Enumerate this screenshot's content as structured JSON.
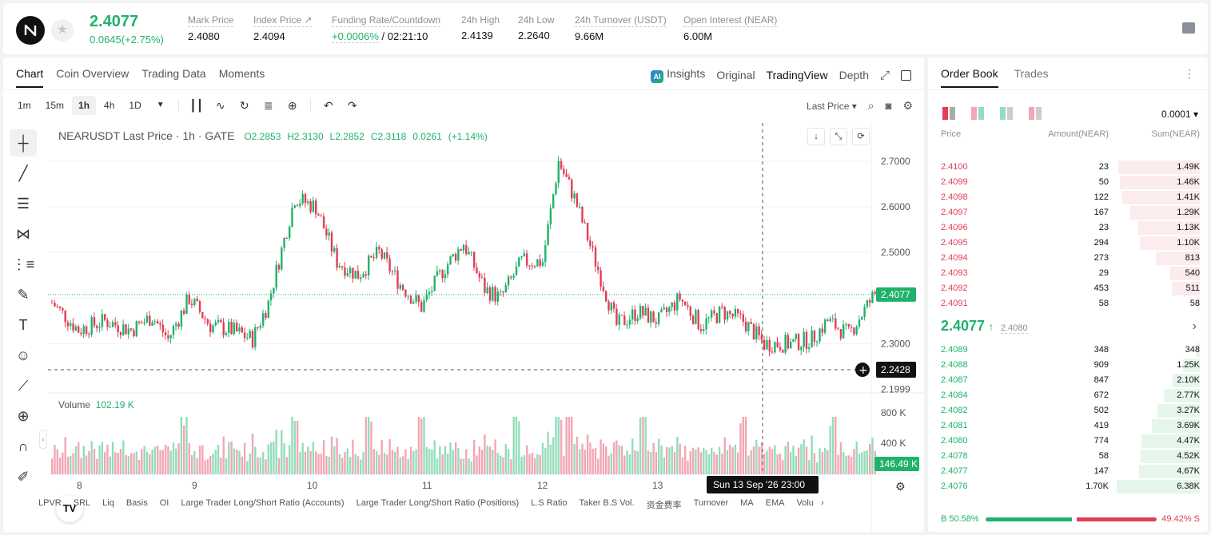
{
  "header": {
    "last_price": "2.4077",
    "change": "0.0645(+2.75%)",
    "stats": [
      {
        "label": "Mark Price",
        "value": "2.4080"
      },
      {
        "label": "Index Price ↗",
        "value": "2.4094"
      },
      {
        "label": "Funding Rate/Countdown",
        "value_green": "+0.0006%",
        "value": "/ 02:21:10"
      },
      {
        "label": "24h High",
        "value": "2.4139"
      },
      {
        "label": "24h Low",
        "value": "2.2640"
      },
      {
        "label": "24h Turnover (USDT)",
        "value": "9.66M"
      },
      {
        "label": "Open Interest (NEAR)",
        "value": "6.00M"
      }
    ]
  },
  "chart_tabs": [
    "Chart",
    "Coin Overview",
    "Trading Data",
    "Moments"
  ],
  "chart_views": {
    "insights": "Insights",
    "original": "Original",
    "tradingview": "TradingView",
    "depth": "Depth",
    "ai": "AI"
  },
  "timeframes": [
    "1m",
    "15m",
    "1h",
    "4h",
    "1D"
  ],
  "active_timeframe": "1h",
  "price_type": "Last Price",
  "legend": {
    "symbol": "NEARUSDT Last Price · 1h · GATE",
    "o": "O2.2853",
    "h": "H2.3130",
    "l": "L2.2852",
    "c": "C2.3118",
    "chg": "0.0261",
    "chg_pct": "(+1.14%)"
  },
  "volume_legend": {
    "label": "Volume",
    "value": "102.19 K"
  },
  "price_axis": [
    "2.7000",
    "2.6000",
    "2.5000",
    "2.3000",
    "2.1999"
  ],
  "volume_axis": [
    "800 K",
    "400 K"
  ],
  "time_axis": [
    "8",
    "9",
    "10",
    "11",
    "12",
    "13"
  ],
  "last_price_tag": "2.4077",
  "crosshair_price_tag": "2.2428",
  "volume_tag": "146.49 K",
  "crosshair_time": "Sun 13 Sep '26   23:00",
  "bottom_indicators": [
    "LPVR",
    "SRL",
    "Liq",
    "Basis",
    "OI",
    "Large Trader Long/Short Ratio (Accounts)",
    "Large Trader Long/Short Ratio (Positions)",
    "L.S Ratio",
    "Taker B.S Vol.",
    "资金费率",
    "Turnover",
    "MA",
    "EMA",
    "Volu"
  ],
  "orderbook": {
    "tabs": [
      "Order Book",
      "Trades"
    ],
    "precision": "0.0001",
    "headers": {
      "price": "Price",
      "amount": "Amount(NEAR)",
      "sum": "Sum(NEAR)"
    },
    "asks": [
      {
        "price": "2.4100",
        "amount": "23",
        "sum": "1.49K",
        "depth": 0.98
      },
      {
        "price": "2.4099",
        "amount": "50",
        "sum": "1.46K",
        "depth": 0.96
      },
      {
        "price": "2.4098",
        "amount": "122",
        "sum": "1.41K",
        "depth": 0.93
      },
      {
        "price": "2.4097",
        "amount": "167",
        "sum": "1.29K",
        "depth": 0.85
      },
      {
        "price": "2.4096",
        "amount": "23",
        "sum": "1.13K",
        "depth": 0.74
      },
      {
        "price": "2.4095",
        "amount": "294",
        "sum": "1.10K",
        "depth": 0.72
      },
      {
        "price": "2.4094",
        "amount": "273",
        "sum": "813",
        "depth": 0.53
      },
      {
        "price": "2.4093",
        "amount": "29",
        "sum": "540",
        "depth": 0.36
      },
      {
        "price": "2.4092",
        "amount": "453",
        "sum": "511",
        "depth": 0.34
      },
      {
        "price": "2.4091",
        "amount": "58",
        "sum": "58",
        "depth": 0.04
      }
    ],
    "mid_price": "2.4077",
    "mid_ref": "2.4080",
    "bids": [
      {
        "price": "2.4089",
        "amount": "348",
        "sum": "348",
        "depth": 0.05
      },
      {
        "price": "2.4088",
        "amount": "909",
        "sum": "1.25K",
        "depth": 0.2
      },
      {
        "price": "2.4087",
        "amount": "847",
        "sum": "2.10K",
        "depth": 0.33
      },
      {
        "price": "2.4084",
        "amount": "672",
        "sum": "2.77K",
        "depth": 0.43
      },
      {
        "price": "2.4082",
        "amount": "502",
        "sum": "3.27K",
        "depth": 0.51
      },
      {
        "price": "2.4081",
        "amount": "419",
        "sum": "3.69K",
        "depth": 0.58
      },
      {
        "price": "2.4080",
        "amount": "774",
        "sum": "4.47K",
        "depth": 0.7
      },
      {
        "price": "2.4078",
        "amount": "58",
        "sum": "4.52K",
        "depth": 0.71
      },
      {
        "price": "2.4077",
        "amount": "147",
        "sum": "4.67K",
        "depth": 0.73
      },
      {
        "price": "2.4076",
        "amount": "1.70K",
        "sum": "6.38K",
        "depth": 1.0
      }
    ],
    "buy_ratio": "B 50.58%",
    "sell_ratio": "49.42% S"
  },
  "colors": {
    "up": "#20b26c",
    "down": "#e03e56",
    "vol_up": "#95dcbb",
    "vol_down": "#f2a7b3"
  }
}
